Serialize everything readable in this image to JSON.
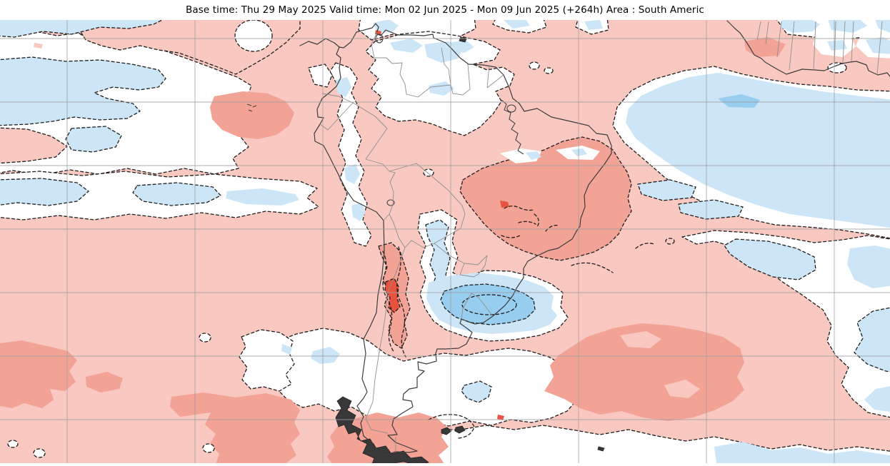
{
  "header": {
    "title": "Base time: Thu 29 May 2025 Valid time: Mon 02 Jun 2025 - Mon 09 Jun 2025 (+264h) Area : South Americ"
  },
  "map": {
    "base_time": "Thu 29 May 2025",
    "valid_time_start": "Mon 02 Jun 2025",
    "valid_time_end": "Mon 09 Jun 2025",
    "lead_time": "+264h",
    "area": "South Americ",
    "projection": "equirectangular",
    "contour_line_style": "dashed",
    "colors": {
      "warm_light": "#f8c8c1",
      "warm_med": "#f3a296",
      "warm_strong": "#e85340",
      "cool_light": "#cde6f7",
      "cool_med": "#97cdee",
      "contour": "#1f1f1f",
      "coast": "#3d3d3d",
      "border": "#8f8f8f",
      "grat": "#9e9e9e"
    },
    "graticule": {
      "lon_deg": [
        -120,
        -100,
        -80,
        -60,
        -40,
        -20,
        0
      ],
      "lat_deg": [
        10,
        0,
        -10,
        -20,
        -30,
        -40,
        -50
      ]
    },
    "features": [
      {
        "id": "pacific-northwest-cool",
        "desc": "Cold anomaly area, eastern tropical Pacific (top left)",
        "level": "cool_light"
      },
      {
        "id": "pacific-cool-band",
        "desc": "Cold anomaly band south of the equator, central Pacific",
        "level": "cool_light"
      },
      {
        "id": "equatorial-atlantic-cool",
        "desc": "Large cold anomaly, equatorial Atlantic off NE South America and West Africa",
        "level": "cool_light"
      },
      {
        "id": "brazil-coast-cool-pocket",
        "desc": "Cold anomaly pocket off the SE Brazil coast",
        "level": "cool_light"
      },
      {
        "id": "uruguay-plata-cool",
        "desc": "Cold anomaly core over Uruguay and the Rio de la Plata",
        "level": "cool_med"
      },
      {
        "id": "paraguay-cool-band",
        "desc": "Cold anomaly band over Paraguay and NE Argentina",
        "level": "cool_light"
      },
      {
        "id": "central-chile-warm-core",
        "desc": "Strong warm anomaly core over central Chile",
        "level": "warm_strong"
      },
      {
        "id": "central-brazil-warm",
        "desc": "Warm anomaly over central and eastern Brazil",
        "level": "warm_med"
      },
      {
        "id": "south-atlantic-warm",
        "desc": "Warm anomaly over the south-west Atlantic",
        "level": "warm_med"
      },
      {
        "id": "galapagos-warm",
        "desc": "Warm anomaly patch near the Galapagos Islands",
        "level": "warm_med"
      },
      {
        "id": "southeast-pacific-warm",
        "desc": "Warm anomaly patches, south-east Pacific",
        "level": "warm_med"
      },
      {
        "id": "patagonia-neutral",
        "desc": "Near-neutral zone over Patagonia and southern Argentina",
        "level": "neutral"
      },
      {
        "id": "background-warm",
        "desc": "Widespread weak warm anomaly background",
        "level": "warm_light"
      }
    ]
  }
}
